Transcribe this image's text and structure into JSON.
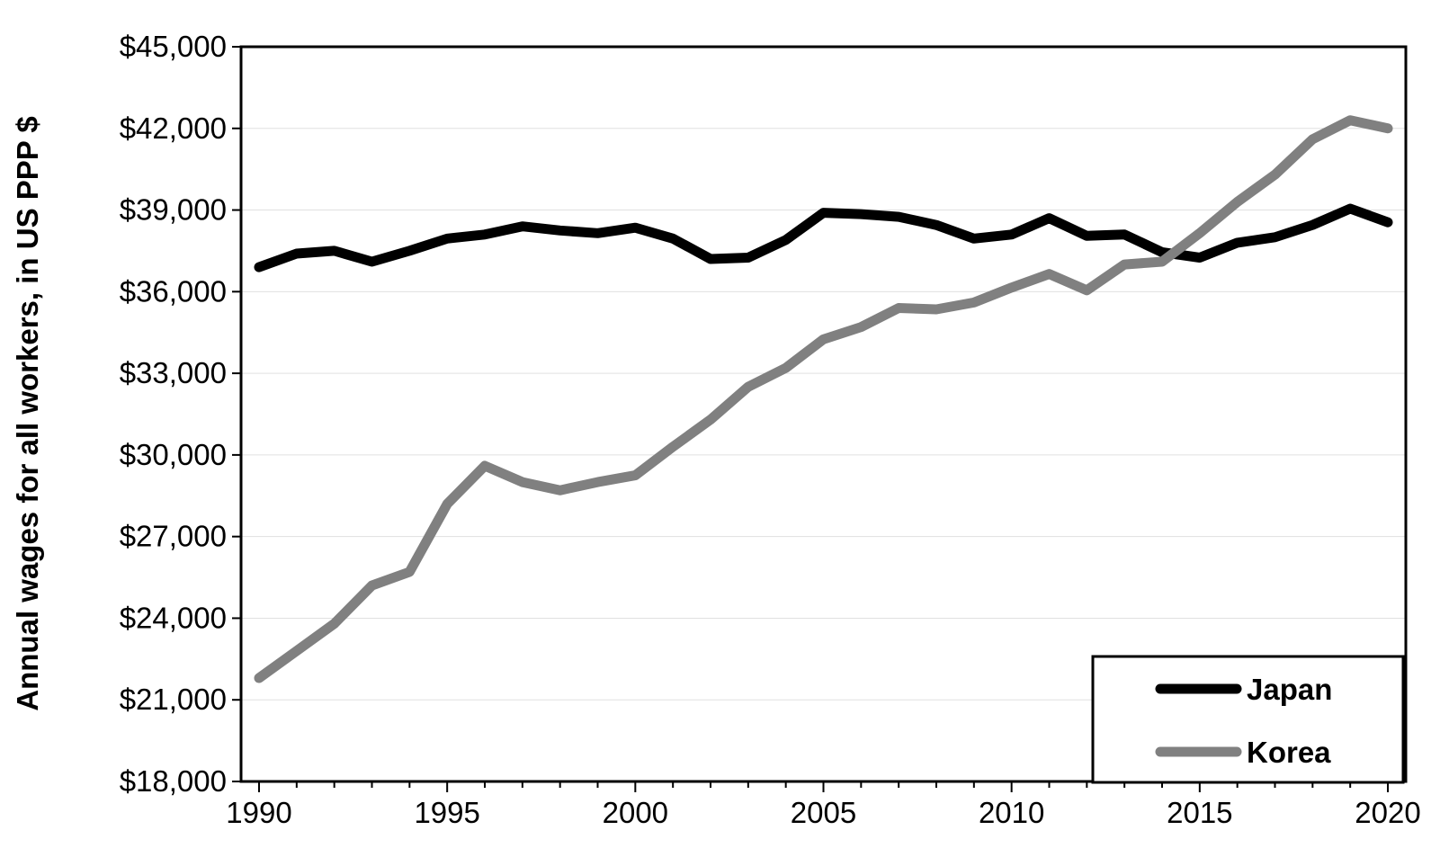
{
  "chart_data": {
    "type": "line",
    "title": "",
    "xlabel": "",
    "ylabel": "Annual wages for all workers, in US PPP $",
    "xlim": [
      1990,
      2020
    ],
    "ylim": [
      18000,
      45000
    ],
    "x_ticks": [
      1990,
      1995,
      2000,
      2005,
      2010,
      2015,
      2020
    ],
    "x_tick_labels": [
      "1990",
      "1995",
      "2000",
      "2005",
      "2010",
      "2015",
      "2020"
    ],
    "y_ticks": [
      18000,
      21000,
      24000,
      27000,
      30000,
      33000,
      36000,
      39000,
      42000,
      45000
    ],
    "y_tick_labels": [
      "$18,000",
      "$21,000",
      "$24,000",
      "$27,000",
      "$30,000",
      "$33,000",
      "$36,000",
      "$39,000",
      "$42,000",
      "$45,000"
    ],
    "grid": true,
    "legend_position": "bottom-right",
    "x": [
      1990,
      1991,
      1992,
      1993,
      1994,
      1995,
      1996,
      1997,
      1998,
      1999,
      2000,
      2001,
      2002,
      2003,
      2004,
      2005,
      2006,
      2007,
      2008,
      2009,
      2010,
      2011,
      2012,
      2013,
      2014,
      2015,
      2016,
      2017,
      2018,
      2019,
      2020
    ],
    "series": [
      {
        "name": "Japan",
        "color": "#000000",
        "values": [
          36900,
          37400,
          37500,
          37100,
          37500,
          37950,
          38100,
          38400,
          38250,
          38150,
          38350,
          37950,
          37200,
          37250,
          37900,
          38900,
          38850,
          38750,
          38450,
          37950,
          38100,
          38700,
          38050,
          38100,
          37450,
          37250,
          37800,
          38000,
          38450,
          39050,
          38550
        ]
      },
      {
        "name": "Korea",
        "color": "#808080",
        "values": [
          21800,
          22800,
          23800,
          25200,
          25700,
          28200,
          29600,
          29000,
          28700,
          29000,
          29250,
          30300,
          31300,
          32500,
          33200,
          34250,
          34700,
          35400,
          35350,
          35600,
          36150,
          36650,
          36050,
          37000,
          37100,
          38150,
          39300,
          40300,
          41600,
          42300,
          42000
        ]
      }
    ]
  }
}
